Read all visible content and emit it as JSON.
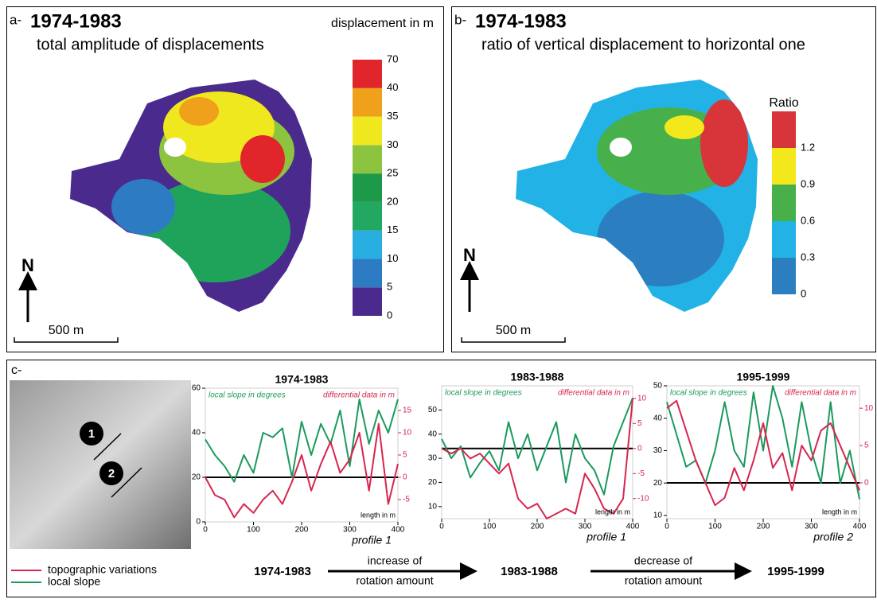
{
  "panels": [
    {
      "label": "a-",
      "period": "1974-1983",
      "subtitle": "total amplitude of displacements",
      "legend_title": "displacement in m",
      "colorbar": {
        "ticks": [
          0,
          5,
          10,
          15,
          20,
          25,
          30,
          35,
          40,
          70
        ],
        "colors": [
          "#4a2a8c",
          "#2d7cc3",
          "#29aee2",
          "#22a860",
          "#1c9a4a",
          "#8cc43f",
          "#f0e81e",
          "#f0a11c",
          "#e0262a"
        ]
      },
      "north": "N",
      "scale": "500 m"
    },
    {
      "label": "b-",
      "period": "1974-1983",
      "subtitle": "ratio of vertical displacement to horizontal one",
      "legend_title": "Ratio",
      "colorbar": {
        "ticks": [
          0,
          0.3,
          0.6,
          0.9,
          1.2
        ],
        "colors": [
          "#2b7fc0",
          "#22b2e6",
          "#47b04b",
          "#f2e81c",
          "#d8353a"
        ]
      },
      "north": "N",
      "scale": "500 m"
    }
  ],
  "panel_c": {
    "label": "c-",
    "markers": [
      "1",
      "2"
    ],
    "legend": [
      {
        "name": "topographic variations",
        "color": "#d6264f"
      },
      {
        "name": "local slope",
        "color": "#1a9a5c"
      }
    ],
    "flow": {
      "periods": [
        "1974-1983",
        "1983-1988",
        "1995-1999"
      ],
      "arrows": [
        [
          "increase of",
          "rotation amount"
        ],
        [
          "decrease of",
          "rotation amount"
        ]
      ]
    }
  },
  "chart_data": [
    {
      "type": "line",
      "title": "1974-1983",
      "profile": "profile 1",
      "xlabel": "length in m",
      "x": [
        0,
        20,
        40,
        60,
        80,
        100,
        120,
        140,
        160,
        180,
        200,
        220,
        240,
        260,
        280,
        300,
        320,
        340,
        360,
        380,
        400
      ],
      "xlim": [
        0,
        400
      ],
      "xticks": [
        0,
        100,
        200,
        300,
        400
      ],
      "ylim": [
        0,
        60
      ],
      "yticks": [
        0,
        20,
        40,
        60
      ],
      "y2lim": [
        -10,
        20
      ],
      "y2ticks": [
        -5,
        0,
        5,
        10,
        15
      ],
      "hline_y2": 0,
      "series": [
        {
          "name": "local slope in degrees",
          "color": "#1a9a5c",
          "values": [
            37,
            30,
            25,
            18,
            30,
            22,
            40,
            38,
            42,
            20,
            45,
            30,
            44,
            35,
            50,
            25,
            55,
            35,
            50,
            40,
            55
          ]
        },
        {
          "name": "differential data in m",
          "color": "#d6264f",
          "axis": "y2",
          "values": [
            0,
            -4,
            -5,
            -9,
            -6,
            -8,
            -5,
            -3,
            -6,
            -1,
            5,
            -3,
            3,
            8,
            1,
            4,
            10,
            -3,
            12,
            -6,
            3
          ]
        }
      ]
    },
    {
      "type": "line",
      "title": "1983-1988",
      "profile": "profile 1",
      "xlabel": "length in m",
      "x": [
        0,
        20,
        40,
        60,
        80,
        100,
        120,
        140,
        160,
        180,
        200,
        220,
        240,
        260,
        280,
        300,
        320,
        340,
        360,
        380,
        400
      ],
      "xlim": [
        0,
        400
      ],
      "xticks": [
        0,
        100,
        200,
        300,
        400
      ],
      "ylim": [
        5,
        60
      ],
      "yticks": [
        10,
        20,
        30,
        40,
        50
      ],
      "y2lim": [
        -14,
        12.5
      ],
      "y2ticks": [
        -10,
        -5,
        0,
        5,
        10
      ],
      "hline_y2": 0,
      "series": [
        {
          "name": "local slope in degrees",
          "color": "#1a9a5c",
          "values": [
            38,
            30,
            35,
            22,
            28,
            33,
            25,
            45,
            30,
            40,
            25,
            35,
            45,
            20,
            40,
            30,
            25,
            15,
            35,
            45,
            55
          ]
        },
        {
          "name": "differential data in m",
          "color": "#d6264f",
          "axis": "y2",
          "values": [
            0,
            -1,
            0,
            -2,
            -1,
            -3,
            -5,
            -3,
            -10,
            -12,
            -11,
            -14,
            -13,
            -12,
            -13,
            -5,
            -8,
            -12,
            -13,
            -10,
            10
          ]
        }
      ]
    },
    {
      "type": "line",
      "title": "1995-1999",
      "profile": "profile 2",
      "xlabel": "length in m",
      "x": [
        0,
        20,
        40,
        60,
        80,
        100,
        120,
        140,
        160,
        180,
        200,
        220,
        240,
        260,
        280,
        300,
        320,
        340,
        360,
        380,
        400
      ],
      "xlim": [
        0,
        400
      ],
      "xticks": [
        0,
        100,
        200,
        300,
        400
      ],
      "ylim": [
        9,
        50
      ],
      "yticks": [
        10,
        20,
        30,
        40,
        50
      ],
      "y2lim": [
        -4.8,
        13
      ],
      "y2ticks": [
        0,
        5,
        10
      ],
      "hline_y2": 0,
      "series": [
        {
          "name": "local slope in degrees",
          "color": "#1a9a5c",
          "values": [
            45,
            35,
            25,
            27,
            20,
            30,
            45,
            30,
            25,
            48,
            30,
            50,
            40,
            25,
            45,
            30,
            20,
            45,
            20,
            30,
            15
          ]
        },
        {
          "name": "differential data in m",
          "color": "#d6264f",
          "axis": "y2",
          "values": [
            10,
            11,
            7,
            3,
            0,
            -3,
            -2,
            2,
            -1,
            3,
            8,
            2,
            4,
            -1,
            5,
            3,
            7,
            8,
            5,
            2,
            -1
          ]
        }
      ]
    }
  ]
}
